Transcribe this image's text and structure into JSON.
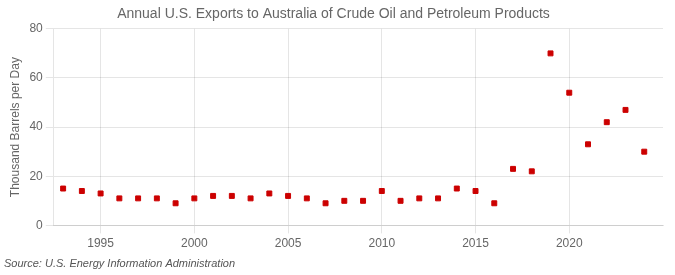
{
  "chart_data": {
    "type": "scatter",
    "title": "Annual U.S. Exports to Australia of Crude Oil and Petroleum Products",
    "ylabel": "Thousand Barrels per Day",
    "source": "Source: U.S. Energy Information Administration",
    "x": [
      1993,
      1994,
      1995,
      1996,
      1997,
      1998,
      1999,
      2000,
      2001,
      2002,
      2003,
      2004,
      2005,
      2006,
      2007,
      2008,
      2009,
      2010,
      2011,
      2012,
      2013,
      2014,
      2015,
      2016,
      2017,
      2018,
      2019,
      2020,
      2021,
      2022,
      2023,
      2024
    ],
    "values": [
      15,
      14,
      13,
      11,
      11,
      11,
      9,
      11,
      12,
      12,
      11,
      13,
      12,
      11,
      9,
      10,
      10,
      14,
      10,
      11,
      11,
      15,
      14,
      9,
      23,
      22,
      70,
      54,
      33,
      42,
      47,
      30
    ],
    "color": "#cc0000",
    "marker": "square",
    "xlim": [
      1992.5,
      2025
    ],
    "ylim": [
      0,
      80
    ],
    "xticks": [
      1995,
      2000,
      2005,
      2010,
      2015,
      2020
    ],
    "yticks": [
      0,
      20,
      40,
      60,
      80
    ],
    "grid": true
  }
}
